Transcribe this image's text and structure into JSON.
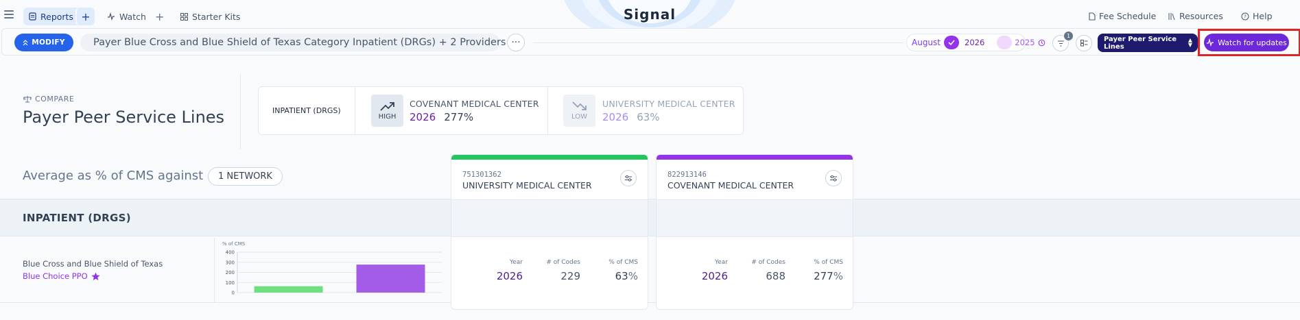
{
  "nav": {
    "reports": "Reports",
    "watch": "Watch",
    "starter_kits": "Starter Kits",
    "plus": "+",
    "logo": "Signal",
    "fee_schedule": "Fee Schedule",
    "resources": "Resources",
    "help": "Help"
  },
  "toolbar": {
    "modify_label": "MODIFY",
    "report_title": "Payer Blue Cross and Blue Shield of Texas Category Inpatient (DRGs) + 2 Providers",
    "more": "···",
    "month": "August",
    "primary_year": "2026",
    "compare_year": "2025",
    "filter_count": "1",
    "view_select": "Payer Peer Service Lines",
    "watch_label": "Watch for updates"
  },
  "header": {
    "compare_label": "COMPARE",
    "title": "Payer Peer Service Lines"
  },
  "summary": {
    "category": "INPATIENT (DRGS)",
    "high": {
      "badge": "HIGH",
      "provider": "COVENANT MEDICAL CENTER",
      "year": "2026",
      "value": "277%"
    },
    "low": {
      "badge": "LOW",
      "provider": "UNIVERSITY MEDICAL CENTER",
      "year": "2026",
      "value": "63%"
    }
  },
  "table": {
    "avg_label": "Average as % of CMS against",
    "network_pill": "1 NETWORK",
    "section": "INPATIENT (DRGS)",
    "payer": "Blue Cross and Blue Shield of Texas",
    "plan": "Blue Choice PPO"
  },
  "chart_data": {
    "type": "bar",
    "ylabel": "% of CMS",
    "ylim": [
      0,
      400
    ],
    "yticks": [
      "400",
      "300",
      "200",
      "100",
      "0"
    ],
    "categories": [
      "UNIVERSITY MEDICAL CENTER",
      "COVENANT MEDICAL CENTER"
    ],
    "values": [
      63,
      277
    ],
    "colors": [
      "#6ee07f",
      "#a35ce8"
    ]
  },
  "providers": [
    {
      "id": "751301362",
      "name": "UNIVERSITY MEDICAL CENTER",
      "color": "#22c55e",
      "col_year": "Year",
      "col_codes": "# of Codes",
      "col_cms": "% of CMS",
      "year": "2026",
      "codes": "229",
      "cms": "63",
      "pct": "%"
    },
    {
      "id": "822913146",
      "name": "COVENANT MEDICAL CENTER",
      "color": "#9333ea",
      "col_year": "Year",
      "col_codes": "# of Codes",
      "col_cms": "% of CMS",
      "year": "2026",
      "codes": "688",
      "cms": "277",
      "pct": "%"
    }
  ],
  "colors": {
    "accent_blue": "#2563eb",
    "brand_navy": "#1e1b6e",
    "watch_purple": "#6d28d9",
    "highlight_red": "#dc2626"
  }
}
